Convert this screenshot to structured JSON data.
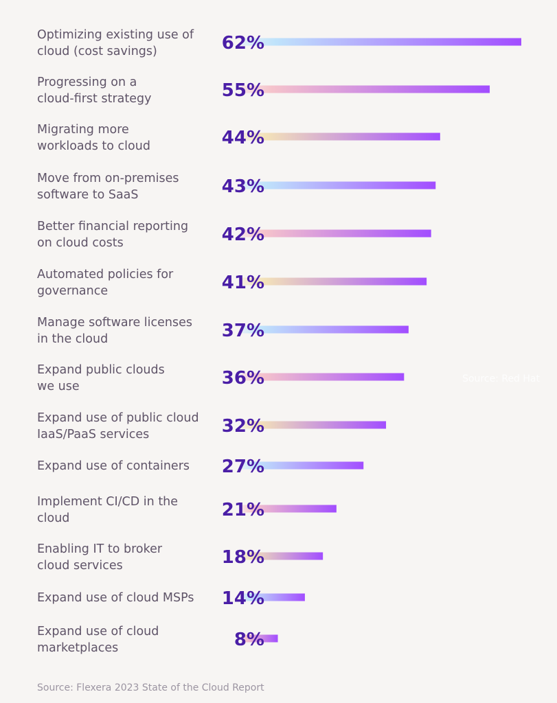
{
  "chart_data": {
    "type": "bar",
    "orientation": "horizontal",
    "categories": [
      [
        "Optimizing existing use of",
        "cloud (cost savings)"
      ],
      [
        "Progressing on a",
        "cloud-first strategy"
      ],
      [
        "Migrating more",
        "workloads to cloud"
      ],
      [
        "Move from on-premises",
        "software to SaaS"
      ],
      [
        "Better financial reporting",
        "on cloud costs"
      ],
      [
        "Automated policies  for",
        "governance"
      ],
      [
        "Manage software licenses",
        "in the cloud"
      ],
      [
        "Expand public clouds",
        "we use"
      ],
      [
        "Expand use of public cloud",
        "IaaS/PaaS services"
      ],
      [
        "Expand use of containers"
      ],
      [
        "Implement CI/CD in the",
        "cloud"
      ],
      [
        "Enabling IT to broker",
        "cloud services"
      ],
      [
        "Expand use of cloud MSPs"
      ],
      [
        "Expand use of cloud",
        "marketplaces"
      ]
    ],
    "values": [
      62,
      55,
      44,
      43,
      42,
      41,
      37,
      36,
      32,
      27,
      21,
      18,
      14,
      8
    ],
    "value_labels": [
      "62%",
      "55%",
      "44%",
      "43%",
      "42%",
      "41%",
      "37%",
      "36%",
      "32%",
      "27%",
      "21%",
      "18%",
      "14%",
      "8%"
    ],
    "unit": "%",
    "xlim": [
      0,
      62
    ],
    "grid": false,
    "legend": "none",
    "gradient_start_colors": [
      "#bfe3fb",
      "#f5c3cb",
      "#f3e2b8"
    ],
    "gradient_end_color": "#a24dff",
    "value_color": "#4a1ea6",
    "label_color": "#5f5468"
  },
  "watermark": "Source: Red Hat",
  "source": "Source: Flexera 2023 State of the Cloud Report"
}
